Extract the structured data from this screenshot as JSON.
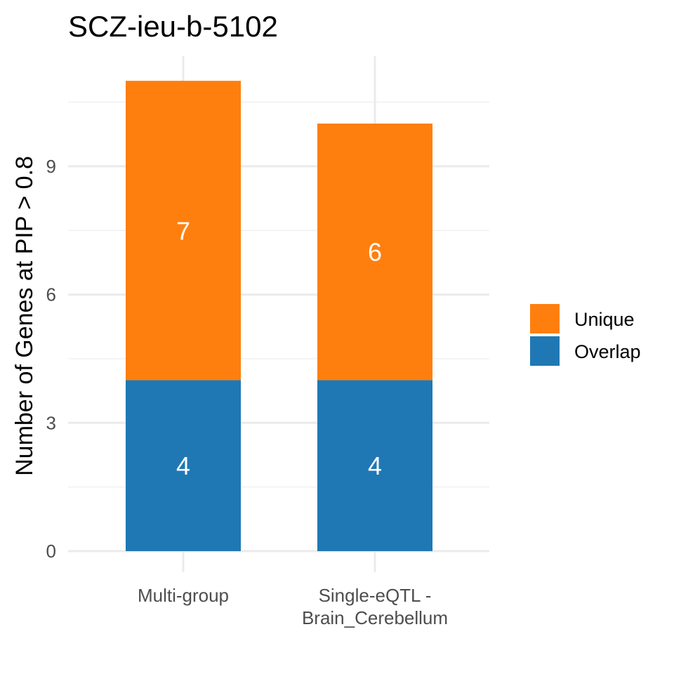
{
  "chart_data": {
    "type": "bar",
    "stacked": true,
    "title": "SCZ-ieu-b-5102",
    "xlabel": "",
    "ylabel": "Number of Genes at PIP > 0.8",
    "categories": [
      "Multi-group",
      "Single-eQTL - Brain_Cerebellum"
    ],
    "category_lines": [
      [
        "Multi-group"
      ],
      [
        "Single-eQTL -",
        "Brain_Cerebellum"
      ]
    ],
    "series": [
      {
        "name": "Overlap",
        "values": [
          4,
          4
        ],
        "color": "#1f78b4"
      },
      {
        "name": "Unique",
        "values": [
          7,
          6
        ],
        "color": "#ff7f0e"
      }
    ],
    "ylim": [
      0,
      11
    ],
    "yticks": [
      0,
      3,
      6,
      9
    ],
    "grid": true,
    "legend": {
      "position": "right",
      "order": [
        "Unique",
        "Overlap"
      ]
    }
  }
}
